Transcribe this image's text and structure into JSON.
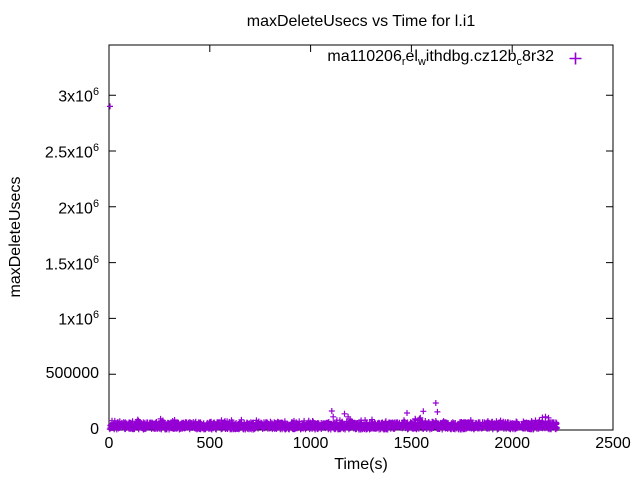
{
  "chart_data": {
    "type": "scatter",
    "title": "maxDeleteUsecs vs Time for l.i1",
    "xlabel": "Time(s)",
    "ylabel": "maxDeleteUsecs",
    "xlim": [
      0,
      2500
    ],
    "ylim": [
      0,
      3450000
    ],
    "xticks": [
      0,
      500,
      1000,
      1500,
      2000,
      2500
    ],
    "yticks": [
      {
        "value": 0,
        "label": "0"
      },
      {
        "value": 500000,
        "label": "500000"
      },
      {
        "value": 1000000,
        "label": "1x10^6"
      },
      {
        "value": 1500000,
        "label": "1.5x10^6"
      },
      {
        "value": 2000000,
        "label": "2x10^6"
      },
      {
        "value": 2500000,
        "label": "2.5x10^6"
      },
      {
        "value": 3000000,
        "label": "3x10^6"
      }
    ],
    "grid": false,
    "legend": {
      "position": "top-right-inside",
      "marker": "plus",
      "label_raw": "ma110206_rel_withdbg.cz12b_c8r32"
    },
    "series": [
      {
        "name": "ma110206_rel_withdbg.cz12b_c8r32",
        "marker": "+",
        "color": "#9400D3",
        "outliers": [
          [
            5,
            2900000
          ],
          [
            1105,
            170000
          ],
          [
            1112,
            118000
          ],
          [
            1168,
            145000
          ],
          [
            1186,
            118000
          ],
          [
            1478,
            152000
          ],
          [
            1519,
            100000
          ],
          [
            1544,
            108000
          ],
          [
            1559,
            168000
          ],
          [
            1621,
            242000
          ],
          [
            1629,
            162000
          ],
          [
            2150,
            112000
          ],
          [
            2165,
            118000
          ],
          [
            2180,
            108000
          ]
        ],
        "band": {
          "description": "dense per-second samples forming a solid low band",
          "x_start": 5,
          "x_end": 2222,
          "count": 1800,
          "y_base": 4000,
          "y_spread": 66000,
          "spike_prob": 0.22,
          "spike_extra": 32000,
          "seed": 7
        }
      }
    ]
  }
}
